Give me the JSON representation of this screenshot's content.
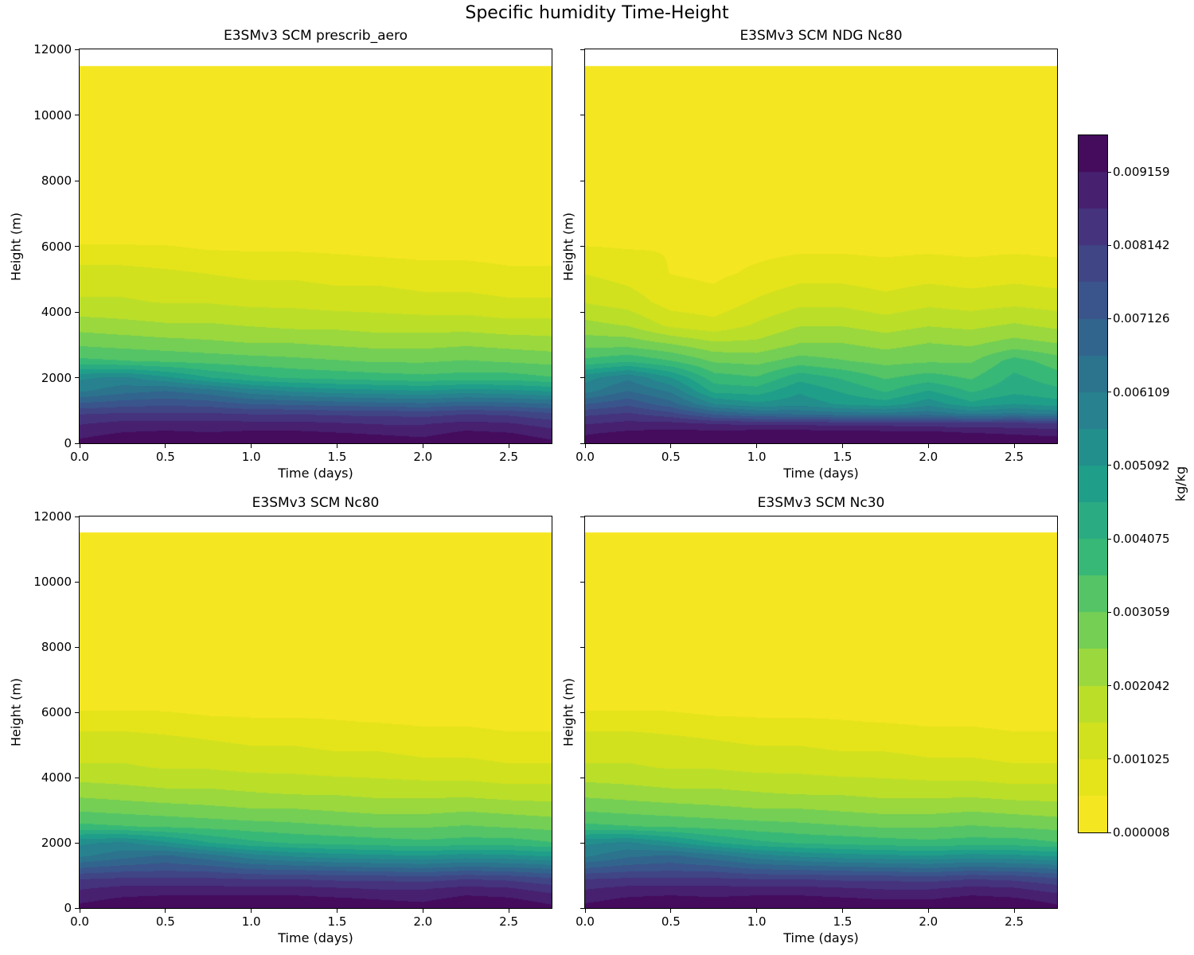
{
  "figure": {
    "title": "Specific humidity Time-Height",
    "background": "#ffffff",
    "colorbar": {
      "label": "kg/kg",
      "ticks": [
        "0.009159",
        "0.008142",
        "0.007126",
        "0.006109",
        "0.005092",
        "0.004075",
        "0.003059",
        "0.002042",
        "0.001025",
        "0.000008"
      ],
      "vmin": 8e-06,
      "vmax": 0.0096665,
      "colormap": "viridis_r",
      "n_bands": 19
    }
  },
  "chart_data": [
    {
      "type": "heatmap",
      "title": "E3SMv3 SCM prescrib_aero",
      "xlabel": "Time (days)",
      "ylabel": "Height (m)",
      "units": "kg/kg",
      "xlim": [
        0.0,
        2.75
      ],
      "ylim": [
        0,
        12000
      ],
      "xticks": [
        0.0,
        0.5,
        1.0,
        1.5,
        2.0,
        2.5
      ],
      "yticks": [
        0,
        2000,
        4000,
        6000,
        8000,
        10000,
        12000
      ],
      "x": [
        0,
        0.25,
        0.5,
        0.75,
        1.0,
        1.25,
        1.5,
        1.75,
        2.0,
        2.25,
        2.5,
        2.75
      ],
      "y": [
        0,
        300,
        600,
        900,
        1200,
        1600,
        2000,
        2500,
        3000,
        3600,
        4300,
        5200,
        6200,
        11500
      ],
      "z": [
        [
          0.0093,
          0.0095,
          0.0097,
          0.0096,
          0.0097,
          0.0097,
          0.0096,
          0.0095,
          0.0094,
          0.0097,
          0.0096,
          0.0093
        ],
        [
          0.009,
          0.0092,
          0.0093,
          0.0092,
          0.0093,
          0.0093,
          0.0092,
          0.0091,
          0.009,
          0.0093,
          0.0092,
          0.0089
        ],
        [
          0.0086,
          0.0088,
          0.0088,
          0.0088,
          0.0088,
          0.0088,
          0.0087,
          0.0086,
          0.0086,
          0.0088,
          0.0087,
          0.0084
        ],
        [
          0.0081,
          0.0082,
          0.0082,
          0.0082,
          0.0081,
          0.0081,
          0.008,
          0.008,
          0.0079,
          0.0081,
          0.008,
          0.0077
        ],
        [
          0.0072,
          0.0074,
          0.0075,
          0.0074,
          0.0071,
          0.007,
          0.0069,
          0.0068,
          0.0067,
          0.0069,
          0.0068,
          0.0066
        ],
        [
          0.006,
          0.0064,
          0.0066,
          0.0063,
          0.0058,
          0.0055,
          0.0053,
          0.0052,
          0.0051,
          0.0053,
          0.0052,
          0.005
        ],
        [
          0.0055,
          0.0057,
          0.0052,
          0.0046,
          0.0042,
          0.004,
          0.0039,
          0.0038,
          0.0037,
          0.0038,
          0.0038,
          0.0036
        ],
        [
          0.0037,
          0.0036,
          0.0035,
          0.0034,
          0.0033,
          0.0032,
          0.0031,
          0.003,
          0.003,
          0.0031,
          0.003,
          0.0029
        ],
        [
          0.003,
          0.0029,
          0.0028,
          0.0027,
          0.0026,
          0.0026,
          0.0025,
          0.0024,
          0.0024,
          0.0025,
          0.0024,
          0.0023
        ],
        [
          0.0023,
          0.0022,
          0.0021,
          0.0021,
          0.002,
          0.0019,
          0.0019,
          0.0018,
          0.0018,
          0.0018,
          0.0017,
          0.0017
        ],
        [
          0.0016,
          0.0016,
          0.0015,
          0.0015,
          0.0014,
          0.0014,
          0.0013,
          0.0013,
          0.0012,
          0.0012,
          0.0011,
          0.0011
        ],
        [
          0.0012,
          0.0012,
          0.0011,
          0.001,
          0.0009,
          0.0009,
          0.0008,
          0.0008,
          0.0007,
          0.0007,
          0.0006,
          0.0006
        ],
        [
          0.0004,
          0.0004,
          0.0004,
          0.0003,
          0.0003,
          0.0003,
          0.0003,
          0.0002,
          0.0002,
          0.0002,
          0.0002,
          0.0002
        ],
        [
          5e-05,
          5e-05,
          5e-05,
          5e-05,
          5e-05,
          5e-05,
          5e-05,
          5e-05,
          5e-05,
          5e-05,
          5e-05,
          5e-05
        ]
      ]
    },
    {
      "type": "heatmap",
      "title": "E3SMv3 SCM NDG Nc80",
      "xlabel": "Time (days)",
      "ylabel": "Height (m)",
      "units": "kg/kg",
      "xlim": [
        0.0,
        2.75
      ],
      "ylim": [
        0,
        12000
      ],
      "xticks": [
        0.0,
        0.5,
        1.0,
        1.5,
        2.0,
        2.5
      ],
      "yticks": [
        0,
        2000,
        4000,
        6000,
        8000,
        10000,
        12000
      ],
      "x": [
        0,
        0.25,
        0.5,
        0.75,
        1.0,
        1.25,
        1.5,
        1.75,
        2.0,
        2.25,
        2.5,
        2.75
      ],
      "y": [
        0,
        300,
        600,
        900,
        1200,
        1600,
        2000,
        2500,
        3000,
        3600,
        4300,
        5200,
        6200,
        11500
      ],
      "z": [
        [
          0.0094,
          0.0096,
          0.0098,
          0.0099,
          0.01,
          0.01,
          0.01,
          0.01,
          0.0099,
          0.0097,
          0.0096,
          0.0095
        ],
        [
          0.0091,
          0.0093,
          0.0094,
          0.0094,
          0.0095,
          0.0095,
          0.0095,
          0.0094,
          0.0094,
          0.0092,
          0.0091,
          0.009
        ],
        [
          0.0086,
          0.0088,
          0.0088,
          0.0086,
          0.0085,
          0.0085,
          0.0084,
          0.0084,
          0.0083,
          0.0083,
          0.0083,
          0.0082
        ],
        [
          0.008,
          0.0082,
          0.0078,
          0.007,
          0.0066,
          0.0065,
          0.0063,
          0.0062,
          0.0064,
          0.006,
          0.0062,
          0.006
        ],
        [
          0.0071,
          0.0075,
          0.0068,
          0.0056,
          0.0052,
          0.0054,
          0.005,
          0.0048,
          0.0054,
          0.0047,
          0.0051,
          0.0048
        ],
        [
          0.0059,
          0.0066,
          0.006,
          0.0044,
          0.0043,
          0.005,
          0.0045,
          0.004,
          0.0046,
          0.004,
          0.0044,
          0.0042
        ],
        [
          0.0054,
          0.006,
          0.0051,
          0.0038,
          0.0036,
          0.0044,
          0.004,
          0.0035,
          0.0038,
          0.0035,
          0.0042,
          0.0038
        ],
        [
          0.0037,
          0.004,
          0.0036,
          0.003,
          0.0029,
          0.0033,
          0.0031,
          0.0029,
          0.003,
          0.003,
          0.0038,
          0.0033
        ],
        [
          0.0029,
          0.0029,
          0.0026,
          0.0022,
          0.0022,
          0.0026,
          0.0026,
          0.0024,
          0.0026,
          0.0025,
          0.0028,
          0.0026
        ],
        [
          0.0022,
          0.002,
          0.0014,
          0.0012,
          0.0016,
          0.002,
          0.002,
          0.0018,
          0.002,
          0.0019,
          0.0021,
          0.0019
        ],
        [
          0.0015,
          0.0013,
          0.0008,
          0.0007,
          0.0011,
          0.0014,
          0.0014,
          0.0012,
          0.0014,
          0.0013,
          0.0014,
          0.0013
        ],
        [
          0.001,
          0.0008,
          0.0005,
          0.0004,
          0.0006,
          0.0008,
          0.0008,
          0.0007,
          0.0008,
          0.0007,
          0.0008,
          0.0007
        ],
        [
          0.0004,
          0.0004,
          0.0005,
          0.0004,
          0.0003,
          0.0003,
          0.0003,
          0.0003,
          0.0003,
          0.0003,
          0.0003,
          0.0003
        ],
        [
          5e-05,
          5e-05,
          5e-05,
          5e-05,
          5e-05,
          5e-05,
          5e-05,
          5e-05,
          5e-05,
          5e-05,
          5e-05,
          5e-05
        ]
      ]
    },
    {
      "type": "heatmap",
      "title": "E3SMv3 SCM Nc80",
      "xlabel": "Time (days)",
      "ylabel": "Height (m)",
      "units": "kg/kg",
      "xlim": [
        0.0,
        2.75
      ],
      "ylim": [
        0,
        12000
      ],
      "xticks": [
        0.0,
        0.5,
        1.0,
        1.5,
        2.0,
        2.5
      ],
      "yticks": [
        0,
        2000,
        4000,
        6000,
        8000,
        10000,
        12000
      ],
      "x": [
        0,
        0.25,
        0.5,
        0.75,
        1.0,
        1.25,
        1.5,
        1.75,
        2.0,
        2.25,
        2.5,
        2.75
      ],
      "y": [
        0,
        300,
        600,
        900,
        1200,
        1600,
        2000,
        2500,
        3000,
        3600,
        4300,
        5200,
        6200,
        11500
      ],
      "z": [
        [
          0.0093,
          0.0095,
          0.0097,
          0.0096,
          0.0098,
          0.0097,
          0.0096,
          0.0095,
          0.0094,
          0.0098,
          0.0096,
          0.0093
        ],
        [
          0.009,
          0.0092,
          0.0093,
          0.0093,
          0.0093,
          0.0093,
          0.0092,
          0.0091,
          0.009,
          0.0093,
          0.0092,
          0.0089
        ],
        [
          0.0086,
          0.0088,
          0.0088,
          0.0088,
          0.0088,
          0.0088,
          0.0087,
          0.0086,
          0.0086,
          0.0088,
          0.0087,
          0.0084
        ],
        [
          0.0081,
          0.0082,
          0.0082,
          0.0082,
          0.0081,
          0.0081,
          0.008,
          0.008,
          0.0079,
          0.0081,
          0.008,
          0.0077
        ],
        [
          0.0072,
          0.0074,
          0.0075,
          0.0074,
          0.0071,
          0.007,
          0.0069,
          0.0068,
          0.0067,
          0.0069,
          0.0068,
          0.0066
        ],
        [
          0.006,
          0.0064,
          0.0067,
          0.0063,
          0.0058,
          0.0055,
          0.0053,
          0.0052,
          0.0051,
          0.0053,
          0.0052,
          0.005
        ],
        [
          0.0055,
          0.0057,
          0.0052,
          0.0046,
          0.0042,
          0.004,
          0.0039,
          0.0038,
          0.0037,
          0.0038,
          0.0038,
          0.0036
        ],
        [
          0.0037,
          0.0036,
          0.0035,
          0.0034,
          0.0033,
          0.0032,
          0.0031,
          0.003,
          0.003,
          0.0031,
          0.003,
          0.0029
        ],
        [
          0.003,
          0.0029,
          0.0028,
          0.0027,
          0.0026,
          0.0026,
          0.0025,
          0.0024,
          0.0024,
          0.0025,
          0.0024,
          0.0023
        ],
        [
          0.0023,
          0.0022,
          0.0021,
          0.0021,
          0.002,
          0.0019,
          0.0019,
          0.0018,
          0.0018,
          0.0018,
          0.0017,
          0.0017
        ],
        [
          0.0016,
          0.0016,
          0.0015,
          0.0015,
          0.0014,
          0.0014,
          0.0013,
          0.0013,
          0.0012,
          0.0012,
          0.0011,
          0.0011
        ],
        [
          0.0012,
          0.0012,
          0.0011,
          0.001,
          0.0009,
          0.0009,
          0.0008,
          0.0008,
          0.0007,
          0.0007,
          0.0006,
          0.0006
        ],
        [
          0.0004,
          0.0004,
          0.0004,
          0.0003,
          0.0003,
          0.0003,
          0.0003,
          0.0002,
          0.0002,
          0.0002,
          0.0002,
          0.0002
        ],
        [
          5e-05,
          5e-05,
          5e-05,
          5e-05,
          5e-05,
          5e-05,
          5e-05,
          5e-05,
          5e-05,
          5e-05,
          5e-05,
          5e-05
        ]
      ]
    },
    {
      "type": "heatmap",
      "title": "E3SMv3 SCM Nc30",
      "xlabel": "Time (days)",
      "ylabel": "Height (m)",
      "units": "kg/kg",
      "xlim": [
        0.0,
        2.75
      ],
      "ylim": [
        0,
        12000
      ],
      "xticks": [
        0.0,
        0.5,
        1.0,
        1.5,
        2.0,
        2.5
      ],
      "yticks": [
        0,
        2000,
        4000,
        6000,
        8000,
        10000,
        12000
      ],
      "x": [
        0,
        0.25,
        0.5,
        0.75,
        1.0,
        1.25,
        1.5,
        1.75,
        2.0,
        2.25,
        2.5,
        2.75
      ],
      "y": [
        0,
        300,
        600,
        900,
        1200,
        1600,
        2000,
        2500,
        3000,
        3600,
        4300,
        5200,
        6200,
        11500
      ],
      "z": [
        [
          0.0093,
          0.0095,
          0.0097,
          0.0096,
          0.0097,
          0.0097,
          0.0096,
          0.0095,
          0.0095,
          0.0098,
          0.0097,
          0.0093
        ],
        [
          0.009,
          0.0092,
          0.0093,
          0.0092,
          0.0093,
          0.0093,
          0.0092,
          0.0091,
          0.0091,
          0.0093,
          0.0092,
          0.0089
        ],
        [
          0.0086,
          0.0088,
          0.0088,
          0.0088,
          0.0088,
          0.0088,
          0.0087,
          0.0086,
          0.0086,
          0.0088,
          0.0087,
          0.0084
        ],
        [
          0.0081,
          0.0082,
          0.0082,
          0.0082,
          0.0081,
          0.0081,
          0.008,
          0.008,
          0.0079,
          0.0081,
          0.008,
          0.0077
        ],
        [
          0.0072,
          0.0074,
          0.0075,
          0.0074,
          0.0071,
          0.007,
          0.0069,
          0.0068,
          0.0067,
          0.0069,
          0.0068,
          0.0066
        ],
        [
          0.006,
          0.0065,
          0.0067,
          0.0063,
          0.0058,
          0.0055,
          0.0053,
          0.0052,
          0.0051,
          0.0053,
          0.0052,
          0.005
        ],
        [
          0.0055,
          0.0057,
          0.0052,
          0.0046,
          0.0042,
          0.004,
          0.0039,
          0.0038,
          0.0037,
          0.0038,
          0.0038,
          0.0036
        ],
        [
          0.0037,
          0.0036,
          0.0035,
          0.0034,
          0.0033,
          0.0032,
          0.0031,
          0.003,
          0.003,
          0.0031,
          0.003,
          0.0029
        ],
        [
          0.003,
          0.0029,
          0.0028,
          0.0027,
          0.0026,
          0.0026,
          0.0025,
          0.0024,
          0.0024,
          0.0025,
          0.0024,
          0.0023
        ],
        [
          0.0023,
          0.0022,
          0.0021,
          0.0021,
          0.002,
          0.0019,
          0.0019,
          0.0018,
          0.0018,
          0.0018,
          0.0017,
          0.0017
        ],
        [
          0.0016,
          0.0016,
          0.0015,
          0.0015,
          0.0014,
          0.0014,
          0.0013,
          0.0013,
          0.0012,
          0.0012,
          0.0011,
          0.0011
        ],
        [
          0.0012,
          0.0012,
          0.0011,
          0.001,
          0.0009,
          0.0009,
          0.0008,
          0.0008,
          0.0007,
          0.0007,
          0.0006,
          0.0006
        ],
        [
          0.0004,
          0.0004,
          0.0004,
          0.0003,
          0.0003,
          0.0003,
          0.0003,
          0.0002,
          0.0002,
          0.0002,
          0.0002,
          0.0002
        ],
        [
          5e-05,
          5e-05,
          5e-05,
          5e-05,
          5e-05,
          5e-05,
          5e-05,
          5e-05,
          5e-05,
          5e-05,
          5e-05,
          5e-05
        ]
      ]
    }
  ]
}
